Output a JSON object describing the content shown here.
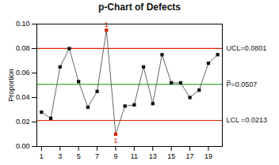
{
  "chart_data": {
    "type": "line",
    "title": "p-Chart of Defects",
    "ylabel": "Proportion",
    "x": [
      1,
      2,
      3,
      4,
      5,
      6,
      7,
      8,
      9,
      10,
      11,
      12,
      13,
      14,
      15,
      16,
      17,
      18,
      19,
      20
    ],
    "values": [
      0.028,
      0.023,
      0.065,
      0.08,
      0.053,
      0.032,
      0.045,
      0.095,
      0.01,
      0.033,
      0.034,
      0.065,
      0.035,
      0.075,
      0.052,
      0.052,
      0.04,
      0.046,
      0.068,
      0.075
    ],
    "color": "#666666",
    "marker": "square",
    "colors": [
      "#111111",
      "#111111",
      "#111111",
      "#111111",
      "#111111",
      "#111111",
      "#111111",
      "#dd2200",
      "#dd2200",
      "#111111",
      "#111111",
      "#111111",
      "#111111",
      "#111111",
      "#111111",
      "#111111",
      "#111111",
      "#111111",
      "#111111",
      "#111111"
    ],
    "xlim": [
      0.5,
      20.5
    ],
    "xticks": [
      1,
      3,
      5,
      7,
      9,
      11,
      13,
      15,
      17,
      19
    ],
    "ylim": [
      0.0,
      0.1
    ],
    "yticks": [
      {
        "value": 0.0,
        "label": "0.00"
      },
      0.02,
      0.04,
      0.06,
      0.08,
      {
        "value": 0.1,
        "label": "0.10"
      }
    ],
    "reference_lines": [
      {
        "value": 0.0801,
        "label": "UCL=0.0801",
        "color": "#dd2200"
      },
      {
        "value": 0.0507,
        "label": "P̅=0.0507",
        "color": "#33aa33"
      },
      {
        "value": 0.0213,
        "label": "LCL =0.0213",
        "color": "#dd2200"
      }
    ],
    "annotations": [
      {
        "x": 8,
        "y": 0.095,
        "text": "1",
        "color": "#dd2200"
      },
      {
        "x": 9,
        "y": 0.01,
        "text": "1",
        "color": "#dd2200"
      }
    ]
  }
}
